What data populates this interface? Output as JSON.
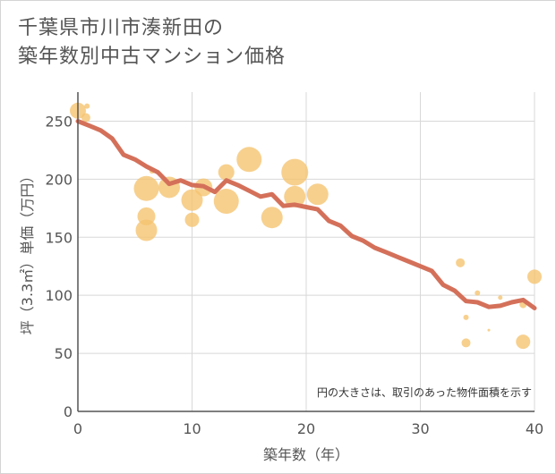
{
  "title_line1": "千葉県市川市湊新田の",
  "title_line2": "築年数別中古マンション価格",
  "chart_data": {
    "type": "scatter",
    "xlabel": "築年数（年）",
    "ylabel": "坪（3.3㎡）単価（万円）",
    "xlim": [
      0,
      40
    ],
    "ylim": [
      0,
      275
    ],
    "xticks": [
      0,
      10,
      20,
      30,
      40
    ],
    "yticks": [
      0,
      50,
      100,
      150,
      200,
      250
    ],
    "grid": true,
    "note": "円の大きさは、取引のあった物件面積を示す",
    "bubbles": [
      {
        "x": 0,
        "y": 259,
        "r": 9
      },
      {
        "x": 0.8,
        "y": 263,
        "r": 3
      },
      {
        "x": 0.7,
        "y": 253,
        "r": 5
      },
      {
        "x": 6,
        "y": 192,
        "r": 14
      },
      {
        "x": 6.5,
        "y": 207,
        "r": 3
      },
      {
        "x": 6,
        "y": 168,
        "r": 10
      },
      {
        "x": 6,
        "y": 156,
        "r": 12
      },
      {
        "x": 8,
        "y": 193,
        "r": 12
      },
      {
        "x": 10,
        "y": 182,
        "r": 12
      },
      {
        "x": 10,
        "y": 165,
        "r": 8
      },
      {
        "x": 11,
        "y": 193,
        "r": 10
      },
      {
        "x": 13,
        "y": 206,
        "r": 9
      },
      {
        "x": 13,
        "y": 181,
        "r": 14
      },
      {
        "x": 15,
        "y": 217,
        "r": 14
      },
      {
        "x": 17,
        "y": 167,
        "r": 12
      },
      {
        "x": 19,
        "y": 206,
        "r": 15
      },
      {
        "x": 19,
        "y": 185,
        "r": 12
      },
      {
        "x": 21,
        "y": 187,
        "r": 12
      },
      {
        "x": 33.5,
        "y": 128,
        "r": 5
      },
      {
        "x": 35,
        "y": 102,
        "r": 3
      },
      {
        "x": 34,
        "y": 81,
        "r": 3
      },
      {
        "x": 34,
        "y": 59,
        "r": 5
      },
      {
        "x": 36,
        "y": 70,
        "r": 1.5
      },
      {
        "x": 37,
        "y": 98,
        "r": 2.5
      },
      {
        "x": 39,
        "y": 92,
        "r": 4
      },
      {
        "x": 39,
        "y": 60,
        "r": 8
      },
      {
        "x": 40,
        "y": 116,
        "r": 8
      }
    ],
    "trend": {
      "x": [
        0,
        1,
        2,
        3,
        4,
        5,
        6,
        7,
        8,
        9,
        10,
        11,
        12,
        13,
        14,
        15,
        16,
        17,
        18,
        19,
        20,
        21,
        22,
        23,
        24,
        25,
        26,
        27,
        28,
        29,
        30,
        31,
        32,
        33,
        34,
        35,
        36,
        37,
        38,
        39,
        40
      ],
      "y": [
        250,
        246,
        242,
        235,
        221,
        217,
        211,
        206,
        196,
        199,
        195,
        194,
        189,
        199,
        195,
        190,
        185,
        187,
        177,
        178,
        176,
        174,
        164,
        160,
        151,
        147,
        141,
        137,
        133,
        129,
        125,
        121,
        109,
        104,
        95,
        94,
        90,
        91,
        94,
        96,
        89
      ]
    },
    "colors": {
      "bubble": "#f5c36e",
      "trend": "#d4705a",
      "grid": "#d8d8d8",
      "axis": "#555555"
    }
  }
}
